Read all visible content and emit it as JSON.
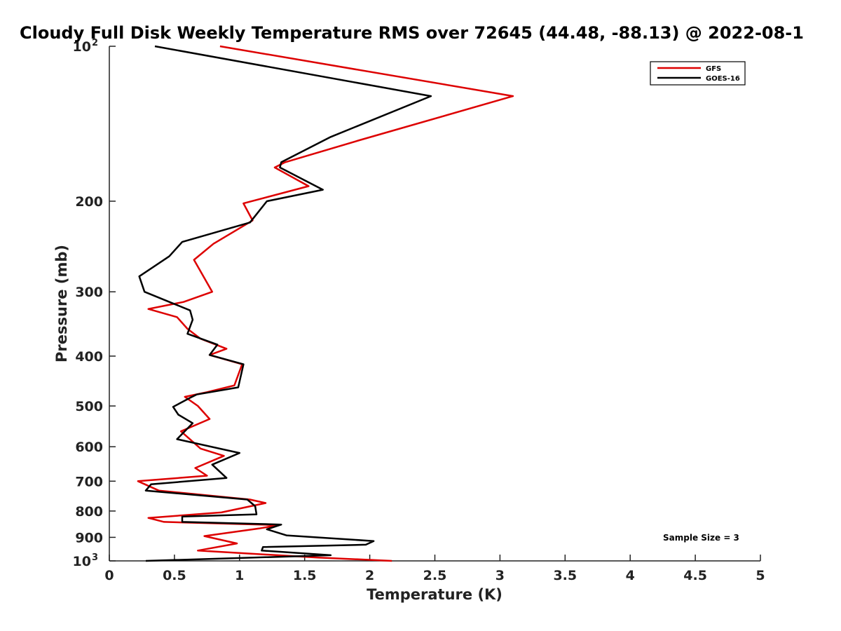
{
  "chart_data": {
    "type": "line",
    "title": "Cloudy Full Disk Weekly Temperature RMS over 72645 (44.48, -88.13) @ 2022-08-1",
    "xlabel": "Temperature (K)",
    "ylabel": "Pressure (mb)",
    "xlim": [
      0,
      5
    ],
    "ylim": [
      1000,
      100
    ],
    "y_scale": "log",
    "y_reversed": true,
    "x_ticks": [
      "0",
      "0.5",
      "1",
      "1.5",
      "2",
      "2.5",
      "3",
      "3.5",
      "4",
      "4.5",
      "5"
    ],
    "x_tick_values": [
      0,
      0.5,
      1,
      1.5,
      2,
      2.5,
      3,
      3.5,
      4,
      4.5,
      5
    ],
    "y_ticks": [
      {
        "value": 100,
        "base": "10",
        "exp": "2"
      },
      {
        "value": 200,
        "label": "200"
      },
      {
        "value": 300,
        "label": "300"
      },
      {
        "value": 400,
        "label": "400"
      },
      {
        "value": 500,
        "label": "500"
      },
      {
        "value": 600,
        "label": "600"
      },
      {
        "value": 700,
        "label": "700"
      },
      {
        "value": 800,
        "label": "800"
      },
      {
        "value": 900,
        "label": "900"
      },
      {
        "value": 1000,
        "base": "10",
        "exp": "3"
      }
    ],
    "grid": false,
    "legend_position": "top-right",
    "annotation": "Sample Size = 3",
    "series": [
      {
        "name": "GFS",
        "color": "#dd0000",
        "points": [
          [
            0.85,
            100
          ],
          [
            3.1,
            125
          ],
          [
            1.93,
            152
          ],
          [
            1.35,
            168
          ],
          [
            1.27,
            172
          ],
          [
            1.53,
            187
          ],
          [
            1.03,
            202
          ],
          [
            1.1,
            218
          ],
          [
            0.8,
            242
          ],
          [
            0.65,
            260
          ],
          [
            0.79,
            300
          ],
          [
            0.57,
            314
          ],
          [
            0.3,
            324
          ],
          [
            0.52,
            336
          ],
          [
            0.6,
            354
          ],
          [
            0.7,
            370
          ],
          [
            0.9,
            387
          ],
          [
            0.77,
            398
          ],
          [
            1.02,
            415
          ],
          [
            0.96,
            456
          ],
          [
            0.75,
            470
          ],
          [
            0.58,
            480
          ],
          [
            0.68,
            500
          ],
          [
            0.77,
            530
          ],
          [
            0.55,
            560
          ],
          [
            0.7,
            605
          ],
          [
            0.88,
            625
          ],
          [
            0.66,
            660
          ],
          [
            0.75,
            683
          ],
          [
            0.22,
            700
          ],
          [
            0.38,
            730
          ],
          [
            1.08,
            760
          ],
          [
            1.2,
            772
          ],
          [
            0.86,
            805
          ],
          [
            0.3,
            825
          ],
          [
            0.42,
            840
          ],
          [
            1.3,
            852
          ],
          [
            1.15,
            865
          ],
          [
            0.73,
            895
          ],
          [
            0.98,
            925
          ],
          [
            0.68,
            955
          ],
          [
            1.6,
            985
          ],
          [
            2.17,
            1000
          ]
        ]
      },
      {
        "name": "GOES-16",
        "color": "#000000",
        "points": [
          [
            0.35,
            100
          ],
          [
            2.47,
            125
          ],
          [
            1.7,
            150
          ],
          [
            1.32,
            168
          ],
          [
            1.31,
            172
          ],
          [
            1.64,
            190
          ],
          [
            1.21,
            200
          ],
          [
            1.08,
            220
          ],
          [
            0.56,
            240
          ],
          [
            0.46,
            256
          ],
          [
            0.23,
            280
          ],
          [
            0.27,
            300
          ],
          [
            0.62,
            326
          ],
          [
            0.64,
            340
          ],
          [
            0.6,
            362
          ],
          [
            0.83,
            380
          ],
          [
            0.77,
            398
          ],
          [
            1.03,
            415
          ],
          [
            0.99,
            460
          ],
          [
            0.67,
            475
          ],
          [
            0.62,
            482
          ],
          [
            0.49,
            502
          ],
          [
            0.53,
            520
          ],
          [
            0.64,
            540
          ],
          [
            0.52,
            580
          ],
          [
            1.0,
            617
          ],
          [
            0.79,
            650
          ],
          [
            0.9,
            690
          ],
          [
            0.32,
            710
          ],
          [
            0.28,
            730
          ],
          [
            1.06,
            760
          ],
          [
            1.12,
            783
          ],
          [
            1.13,
            812
          ],
          [
            0.56,
            820
          ],
          [
            0.56,
            840
          ],
          [
            1.32,
            850
          ],
          [
            1.21,
            868
          ],
          [
            1.36,
            892
          ],
          [
            2.03,
            915
          ],
          [
            1.97,
            930
          ],
          [
            1.18,
            940
          ],
          [
            1.17,
            955
          ],
          [
            1.7,
            975
          ],
          [
            0.28,
            1000
          ]
        ]
      }
    ]
  }
}
